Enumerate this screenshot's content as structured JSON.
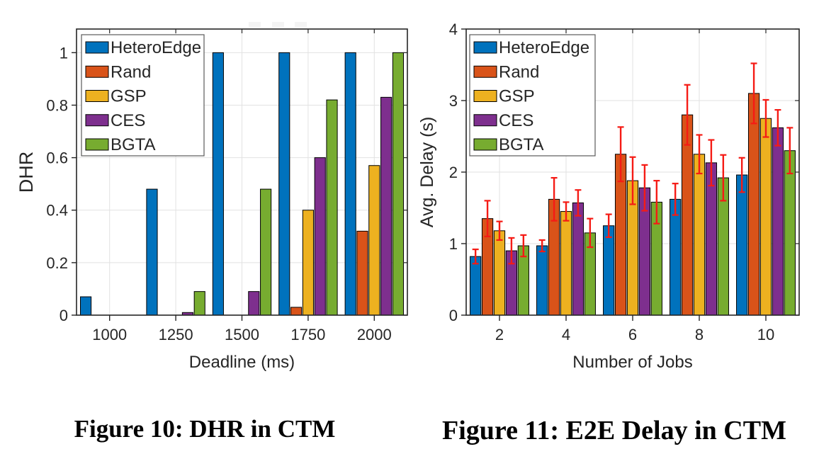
{
  "captions": {
    "figure10": "Figure 10: DHR in CTM",
    "figure11": "Figure 11: E2E Delay in CTM"
  },
  "colors": {
    "HeteroEdge": "#0072BD",
    "Rand": "#D95319",
    "GSP": "#EDB120",
    "CES": "#7E2F8E",
    "BGTA": "#77AC30",
    "error_bar": "#F51B15",
    "bar_edge": "#000000",
    "axis": "#262626",
    "grid": "#E2E2E2",
    "legend_border": "#5A5A5A"
  },
  "legend_entries": [
    "HeteroEdge",
    "Rand",
    "GSP",
    "CES",
    "BGTA"
  ],
  "chart_data": [
    {
      "id": "dhr-chart",
      "type": "bar",
      "title": "",
      "xlabel": "Deadline (ms)",
      "ylabel": "DHR",
      "categories": [
        "1000",
        "1250",
        "1500",
        "1750",
        "2000"
      ],
      "ylim": [
        0,
        1.09
      ],
      "yticks": [
        0,
        0.2,
        0.4,
        0.6,
        0.8,
        1
      ],
      "ytick_labels": [
        "0",
        "0.2",
        "0.4",
        "0.6",
        "0.8",
        "1"
      ],
      "grid": true,
      "legend_position": "top-left",
      "error_bars": false,
      "series": [
        {
          "name": "HeteroEdge",
          "values": [
            0.07,
            0.48,
            1.0,
            1.0,
            1.0
          ]
        },
        {
          "name": "Rand",
          "values": [
            0,
            0,
            0,
            0.03,
            0.32
          ]
        },
        {
          "name": "GSP",
          "values": [
            0,
            0,
            0,
            0.4,
            0.57
          ]
        },
        {
          "name": "CES",
          "values": [
            0,
            0.01,
            0.09,
            0.6,
            0.83
          ]
        },
        {
          "name": "BGTA",
          "values": [
            0,
            0.09,
            0.48,
            0.82,
            1.0
          ]
        }
      ]
    },
    {
      "id": "e2e-delay-chart",
      "type": "bar",
      "title": "",
      "xlabel": "Number of Jobs",
      "ylabel": "Avg. Delay (s)",
      "categories": [
        "2",
        "4",
        "6",
        "8",
        "10"
      ],
      "ylim": [
        0,
        4
      ],
      "yticks": [
        0,
        1,
        2,
        3,
        4
      ],
      "ytick_labels": [
        "0",
        "1",
        "2",
        "3",
        "4"
      ],
      "grid": true,
      "legend_position": "top-left",
      "error_bars": true,
      "series": [
        {
          "name": "HeteroEdge",
          "values": [
            0.82,
            0.97,
            1.25,
            1.62,
            1.96
          ],
          "errors": [
            0.1,
            0.08,
            0.16,
            0.22,
            0.24
          ]
        },
        {
          "name": "Rand",
          "values": [
            1.35,
            1.62,
            2.25,
            2.8,
            3.1
          ],
          "errors": [
            0.25,
            0.3,
            0.38,
            0.42,
            0.42
          ]
        },
        {
          "name": "GSP",
          "values": [
            1.18,
            1.45,
            1.88,
            2.25,
            2.75
          ],
          "errors": [
            0.13,
            0.13,
            0.33,
            0.27,
            0.26
          ]
        },
        {
          "name": "CES",
          "values": [
            0.9,
            1.57,
            1.78,
            2.13,
            2.62
          ],
          "errors": [
            0.18,
            0.18,
            0.32,
            0.32,
            0.25
          ]
        },
        {
          "name": "BGTA",
          "values": [
            0.97,
            1.15,
            1.58,
            1.92,
            2.3
          ],
          "errors": [
            0.15,
            0.2,
            0.3,
            0.32,
            0.32
          ]
        }
      ]
    }
  ]
}
